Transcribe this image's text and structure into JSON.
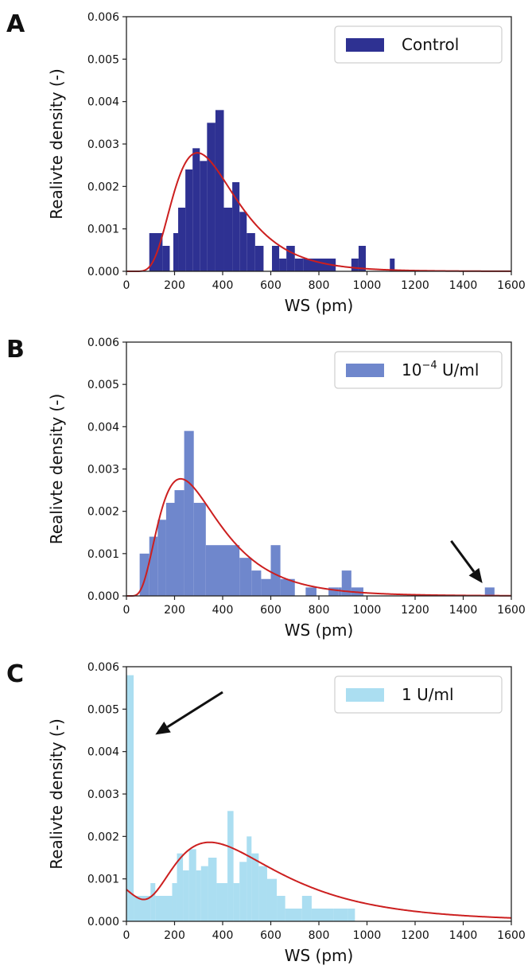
{
  "chart_data": [
    {
      "panel_label": "A",
      "type": "bar",
      "xlabel": "WS (pm)",
      "ylabel": "Realivte density (-)",
      "xlim": [
        0,
        1600
      ],
      "ylim": [
        0,
        0.006
      ],
      "xticks": [
        "0",
        "200",
        "400",
        "600",
        "800",
        "1000",
        "1200",
        "1400",
        "1600"
      ],
      "yticks": [
        "0.000",
        "0.001",
        "0.002",
        "0.003",
        "0.004",
        "0.005",
        "0.006"
      ],
      "legend": {
        "label": "Control",
        "label_suffix": "",
        "position": "top-right"
      },
      "bar_color": "#2e3192",
      "bar_opacity": 1,
      "bins": [
        {
          "x0": 95,
          "x1": 150,
          "y": 0.0009
        },
        {
          "x0": 150,
          "x1": 180,
          "y": 0.0006
        },
        {
          "x0": 180,
          "x1": 195,
          "y": 0.0
        },
        {
          "x0": 195,
          "x1": 215,
          "y": 0.0009
        },
        {
          "x0": 215,
          "x1": 245,
          "y": 0.0015
        },
        {
          "x0": 245,
          "x1": 275,
          "y": 0.0024
        },
        {
          "x0": 275,
          "x1": 305,
          "y": 0.0029
        },
        {
          "x0": 305,
          "x1": 335,
          "y": 0.0026
        },
        {
          "x0": 335,
          "x1": 370,
          "y": 0.0035
        },
        {
          "x0": 370,
          "x1": 405,
          "y": 0.0038
        },
        {
          "x0": 405,
          "x1": 440,
          "y": 0.0015
        },
        {
          "x0": 440,
          "x1": 470,
          "y": 0.0021
        },
        {
          "x0": 470,
          "x1": 500,
          "y": 0.0014
        },
        {
          "x0": 500,
          "x1": 535,
          "y": 0.0009
        },
        {
          "x0": 535,
          "x1": 570,
          "y": 0.0006
        },
        {
          "x0": 570,
          "x1": 605,
          "y": 0.0
        },
        {
          "x0": 605,
          "x1": 635,
          "y": 0.0006
        },
        {
          "x0": 635,
          "x1": 665,
          "y": 0.0003
        },
        {
          "x0": 665,
          "x1": 700,
          "y": 0.0006
        },
        {
          "x0": 700,
          "x1": 735,
          "y": 0.0003
        },
        {
          "x0": 735,
          "x1": 870,
          "y": 0.0003
        },
        {
          "x0": 935,
          "x1": 965,
          "y": 0.0003
        },
        {
          "x0": 965,
          "x1": 995,
          "y": 0.0006
        },
        {
          "x0": 1095,
          "x1": 1115,
          "y": 0.0003
        }
      ],
      "curve": {
        "color": "#cc1f1f",
        "mu": 5.88,
        "sigma": 0.44
      }
    },
    {
      "panel_label": "B",
      "type": "bar",
      "xlabel": "WS (pm)",
      "ylabel": "Realivte density (-)",
      "xlim": [
        0,
        1600
      ],
      "ylim": [
        0,
        0.006
      ],
      "xticks": [
        "0",
        "200",
        "400",
        "600",
        "800",
        "1000",
        "1200",
        "1400",
        "1600"
      ],
      "yticks": [
        "0.000",
        "0.001",
        "0.002",
        "0.003",
        "0.004",
        "0.005",
        "0.006"
      ],
      "legend": {
        "label": "10",
        "label_suffix": "U/ml",
        "superscript": "−4",
        "position": "top-right"
      },
      "bar_color": "#6f87cc",
      "bar_opacity": 1,
      "bins": [
        {
          "x0": 55,
          "x1": 95,
          "y": 0.001
        },
        {
          "x0": 95,
          "x1": 130,
          "y": 0.0014
        },
        {
          "x0": 130,
          "x1": 165,
          "y": 0.0018
        },
        {
          "x0": 165,
          "x1": 200,
          "y": 0.0022
        },
        {
          "x0": 200,
          "x1": 240,
          "y": 0.0025
        },
        {
          "x0": 240,
          "x1": 280,
          "y": 0.0039
        },
        {
          "x0": 280,
          "x1": 330,
          "y": 0.0022
        },
        {
          "x0": 330,
          "x1": 470,
          "y": 0.0012
        },
        {
          "x0": 470,
          "x1": 520,
          "y": 0.0009
        },
        {
          "x0": 520,
          "x1": 560,
          "y": 0.0006
        },
        {
          "x0": 560,
          "x1": 600,
          "y": 0.0004
        },
        {
          "x0": 600,
          "x1": 640,
          "y": 0.0012
        },
        {
          "x0": 640,
          "x1": 700,
          "y": 0.0004
        },
        {
          "x0": 745,
          "x1": 790,
          "y": 0.0002
        },
        {
          "x0": 840,
          "x1": 880,
          "y": 0.0002
        },
        {
          "x0": 880,
          "x1": 895,
          "y": 0.0002
        },
        {
          "x0": 895,
          "x1": 935,
          "y": 0.0006
        },
        {
          "x0": 935,
          "x1": 985,
          "y": 0.0002
        },
        {
          "x0": 1490,
          "x1": 1530,
          "y": 0.0002
        }
      ],
      "curve": {
        "color": "#cc1f1f",
        "mu": 5.72,
        "sigma": 0.55
      },
      "arrow": {
        "from": [
          1350,
          0.0013
        ],
        "to": [
          1480,
          0.0003
        ]
      }
    },
    {
      "panel_label": "C",
      "type": "bar",
      "xlabel": "WS (pm)",
      "ylabel": "Realivte density (-)",
      "xlim": [
        0,
        1600
      ],
      "ylim": [
        0,
        0.006
      ],
      "xticks": [
        "0",
        "200",
        "400",
        "600",
        "800",
        "1000",
        "1200",
        "1400",
        "1600"
      ],
      "yticks": [
        "0.000",
        "0.001",
        "0.002",
        "0.003",
        "0.004",
        "0.005",
        "0.006"
      ],
      "legend": {
        "label": "1 U/ml",
        "label_suffix": "",
        "position": "top-right"
      },
      "bar_color": "#8fd3ec",
      "bar_opacity": 0.75,
      "bins": [
        {
          "x0": 0,
          "x1": 30,
          "y": 0.0058
        },
        {
          "x0": 30,
          "x1": 100,
          "y": 0.0006
        },
        {
          "x0": 100,
          "x1": 120,
          "y": 0.0009
        },
        {
          "x0": 120,
          "x1": 190,
          "y": 0.0006
        },
        {
          "x0": 190,
          "x1": 210,
          "y": 0.0009
        },
        {
          "x0": 210,
          "x1": 235,
          "y": 0.0016
        },
        {
          "x0": 235,
          "x1": 260,
          "y": 0.0012
        },
        {
          "x0": 260,
          "x1": 290,
          "y": 0.0017
        },
        {
          "x0": 290,
          "x1": 310,
          "y": 0.0012
        },
        {
          "x0": 310,
          "x1": 340,
          "y": 0.0013
        },
        {
          "x0": 340,
          "x1": 375,
          "y": 0.0015
        },
        {
          "x0": 375,
          "x1": 420,
          "y": 0.0009
        },
        {
          "x0": 420,
          "x1": 445,
          "y": 0.0026
        },
        {
          "x0": 445,
          "x1": 470,
          "y": 0.0009
        },
        {
          "x0": 470,
          "x1": 500,
          "y": 0.0014
        },
        {
          "x0": 500,
          "x1": 520,
          "y": 0.002
        },
        {
          "x0": 520,
          "x1": 550,
          "y": 0.0016
        },
        {
          "x0": 550,
          "x1": 585,
          "y": 0.0013
        },
        {
          "x0": 585,
          "x1": 625,
          "y": 0.001
        },
        {
          "x0": 625,
          "x1": 660,
          "y": 0.0006
        },
        {
          "x0": 660,
          "x1": 730,
          "y": 0.0003
        },
        {
          "x0": 730,
          "x1": 770,
          "y": 0.0006
        },
        {
          "x0": 770,
          "x1": 860,
          "y": 0.0003
        },
        {
          "x0": 860,
          "x1": 920,
          "y": 0.0003
        },
        {
          "x0": 920,
          "x1": 950,
          "y": 0.0003
        }
      ],
      "curve": {
        "color": "#cc1f1f",
        "mu": 5.88,
        "sigma": 0.6,
        "scale": 0.00117,
        "offset": 0.00075,
        "decay": 150
      },
      "arrow": {
        "from": [
          400,
          0.0054
        ],
        "to": [
          120,
          0.0044
        ]
      }
    }
  ]
}
